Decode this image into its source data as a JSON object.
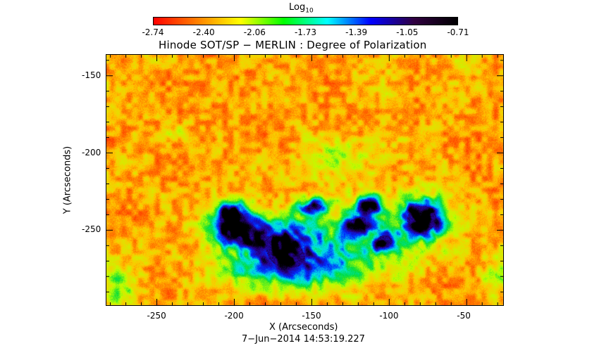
{
  "colorbar": {
    "title": "Log",
    "title_sub": "10",
    "tick_labels": [
      "-2.74",
      "-2.40",
      "-2.06",
      "-1.73",
      "-1.39",
      "-1.05",
      "-0.71"
    ],
    "colormap": [
      "#ff0000",
      "#ff7f00",
      "#ffff00",
      "#00ff00",
      "#00ffff",
      "#0000ff",
      "#300040",
      "#000000"
    ]
  },
  "plot": {
    "title": "Hinode SOT/SP − MERLIN : Degree of Polarization",
    "xlabel": "X (Arcseconds)",
    "ylabel": "Y (Arcseconds)",
    "x_ticks": [
      "-250",
      "-200",
      "-150",
      "-100",
      "-50"
    ],
    "y_ticks": [
      "-150",
      "-200",
      "-250"
    ],
    "xlim": [
      -283,
      -26
    ],
    "ylim": [
      -299,
      -136
    ]
  },
  "footer": {
    "timestamp": "7−Jun−2014  14:53:19.227"
  }
}
